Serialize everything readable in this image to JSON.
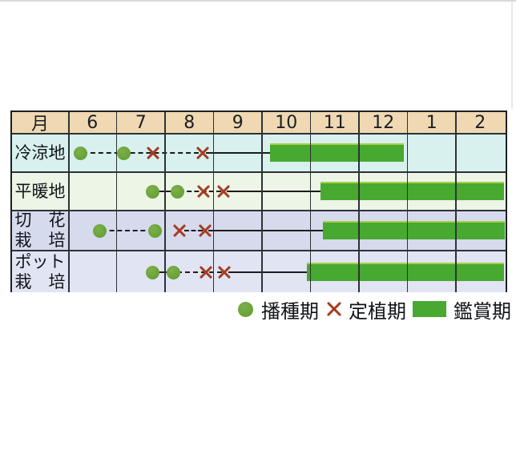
{
  "colors": {
    "page_bg": "#ffffff",
    "header_bg": "#efd8b2",
    "grid_line": "#2c3236",
    "outer_border": "#1c2023",
    "bar_green": "#47a930",
    "bar_top_edge": "#a9cf49",
    "dot_green": "#68a036",
    "cross_red": "#a63c22",
    "connector": "#1c1c1c",
    "text": "#1b1f23"
  },
  "chart_data": {
    "type": "table",
    "month_axis": {
      "header_label": "月",
      "months": [
        "6",
        "7",
        "8",
        "9",
        "10",
        "11",
        "12",
        "1",
        "2"
      ],
      "note": "continuous month scale Jun-Feb; 13=Jan, 14=Feb, 15=end of Feb"
    },
    "series_legend": [
      {
        "marker": "green-dot",
        "label": "播種期"
      },
      {
        "marker": "red-cross",
        "label": "定植期"
      },
      {
        "marker": "green-bar",
        "label": "鑑賞期"
      }
    ],
    "rows": [
      {
        "label": "冷涼地",
        "label_lines": [
          "冷涼地"
        ],
        "row_bg": "#d8f1ee",
        "sowing_dots": [
          6.25,
          7.15
        ],
        "transplant_crosses": [
          7.75,
          8.77
        ],
        "display_bar": [
          10.17,
          12.93
        ],
        "connectors": [
          {
            "from": 6.3,
            "to": 8.7,
            "style": "dashed"
          },
          {
            "from": 8.85,
            "to": 10.2,
            "style": "solid"
          }
        ]
      },
      {
        "label": "平暖地",
        "label_lines": [
          "平暖地"
        ],
        "row_bg": "#ecf5e6",
        "sowing_dots": [
          7.75,
          8.26
        ],
        "transplant_crosses": [
          8.79,
          9.2
        ],
        "display_bar": [
          11.2,
          15.0
        ],
        "connectors": [
          {
            "from": 7.75,
            "to": 8.26,
            "style": "solid"
          },
          {
            "from": 8.3,
            "to": 9.15,
            "style": "dashed"
          },
          {
            "from": 9.28,
            "to": 11.25,
            "style": "solid"
          }
        ]
      },
      {
        "label": "切花栽培",
        "label_lines": [
          "切　花",
          "栽　培"
        ],
        "row_bg": "#d6daed",
        "sowing_dots": [
          6.66,
          7.8
        ],
        "transplant_crosses": [
          8.3,
          8.82
        ],
        "display_bar": [
          11.25,
          15.0
        ],
        "connectors": [
          {
            "from": 6.7,
            "to": 7.75,
            "style": "dashed"
          },
          {
            "from": 8.4,
            "to": 8.78,
            "style": "dashed"
          },
          {
            "from": 8.9,
            "to": 11.3,
            "style": "solid"
          }
        ]
      },
      {
        "label": "ポット栽培",
        "label_lines": [
          "ポット",
          "栽　培"
        ],
        "row_bg": "#e1e4f3",
        "sowing_dots": [
          7.75,
          8.18
        ],
        "transplant_crosses": [
          8.84,
          9.23
        ],
        "display_bar": [
          10.92,
          15.0
        ],
        "connectors": [
          {
            "from": 7.75,
            "to": 8.18,
            "style": "solid"
          },
          {
            "from": 8.25,
            "to": 9.18,
            "style": "dashed"
          },
          {
            "from": 9.3,
            "to": 10.95,
            "style": "solid"
          }
        ]
      }
    ]
  }
}
